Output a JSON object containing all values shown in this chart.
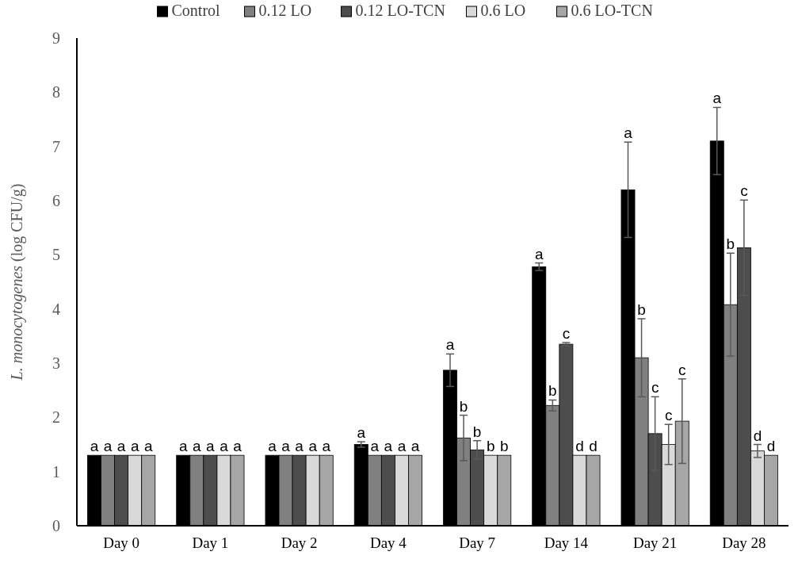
{
  "chart_data": {
    "type": "bar",
    "ylabel": "L. monocytogenes (log CFU/g)",
    "categories": [
      "Day 0",
      "Day 1",
      "Day 2",
      "Day 4",
      "Day 7",
      "Day 14",
      "Day 21",
      "Day 28"
    ],
    "ylim": [
      0,
      9
    ],
    "yticks": [
      0,
      1,
      2,
      3,
      4,
      5,
      6,
      7,
      8,
      9
    ],
    "grid": false,
    "legend": "top",
    "series": [
      {
        "name": "Control",
        "color": "#000000",
        "values": [
          1.3,
          1.3,
          1.3,
          1.5,
          2.87,
          4.78,
          6.2,
          7.1
        ],
        "errors": [
          null,
          null,
          null,
          0.05,
          0.3,
          0.07,
          0.88,
          0.62
        ]
      },
      {
        "name": "0.12 LO",
        "color": "#808080",
        "values": [
          1.3,
          1.3,
          1.3,
          1.3,
          1.62,
          2.22,
          3.1,
          4.08
        ],
        "errors": [
          null,
          null,
          null,
          null,
          0.42,
          0.1,
          0.72,
          0.95
        ]
      },
      {
        "name": "0.12 LO-TCN",
        "color": "#4d4d4d",
        "values": [
          1.3,
          1.3,
          1.3,
          1.3,
          1.4,
          3.35,
          1.7,
          5.13
        ],
        "errors": [
          null,
          null,
          null,
          null,
          0.17,
          0.03,
          0.68,
          0.88
        ]
      },
      {
        "name": "0.6 LO",
        "color": "#d9d9d9",
        "values": [
          1.3,
          1.3,
          1.3,
          1.3,
          1.3,
          1.3,
          1.5,
          1.38
        ],
        "errors": [
          null,
          null,
          null,
          null,
          null,
          null,
          0.37,
          0.12
        ]
      },
      {
        "name": "0.6 LO-TCN",
        "color": "#a6a6a6",
        "values": [
          1.3,
          1.3,
          1.3,
          1.3,
          1.3,
          1.3,
          1.93,
          1.3
        ],
        "errors": [
          null,
          null,
          null,
          null,
          null,
          null,
          0.78,
          null
        ]
      }
    ],
    "annotations": [
      "a",
      "a",
      "a",
      "a",
      "a",
      "a",
      "a",
      "a",
      "a",
      "a",
      "a",
      "a",
      "a",
      "a",
      "a",
      "a",
      "a",
      "a",
      "a",
      "a",
      "a",
      "b",
      "b",
      "b",
      "b",
      "a",
      "b",
      "c",
      "d",
      "d",
      "a",
      "b",
      "c",
      "c",
      "c",
      "a",
      "b",
      "c",
      "d",
      "d"
    ]
  }
}
